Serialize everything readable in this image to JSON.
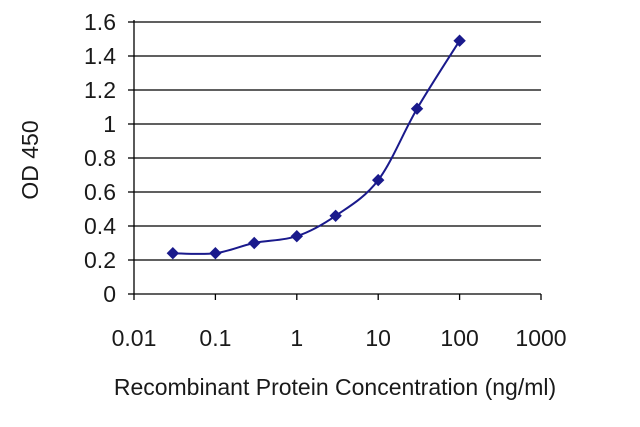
{
  "chart_data": {
    "type": "line",
    "title": "",
    "xlabel": "Recombinant Protein Concentration (ng/ml)",
    "ylabel": "OD 450",
    "xscale": "log",
    "xlim": [
      0.01,
      1000
    ],
    "ylim": [
      0,
      1.6
    ],
    "xticks": [
      "0.01",
      "0.1",
      "1",
      "10",
      "100",
      "1000"
    ],
    "yticks": [
      "0",
      "0.2",
      "0.4",
      "0.6",
      "0.8",
      "1",
      "1.2",
      "1.4",
      "1.6"
    ],
    "grid": "horizontal",
    "legend": "none",
    "series": [
      {
        "x": [
          0.03,
          0.1,
          0.3,
          1,
          3,
          10,
          30,
          100
        ],
        "y": [
          0.24,
          0.24,
          0.3,
          0.34,
          0.46,
          0.67,
          1.09,
          1.49
        ]
      }
    ],
    "colors": {
      "line": "#1a1a8c",
      "grid": "#000000",
      "axis": "#000000"
    }
  }
}
